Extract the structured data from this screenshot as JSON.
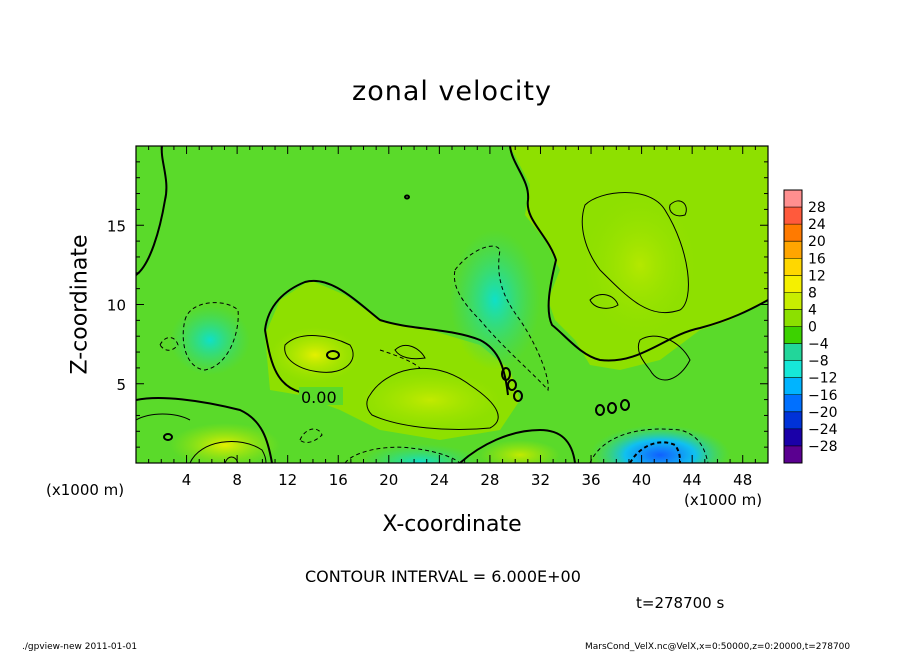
{
  "chart_data": {
    "type": "heatmap",
    "title": "zonal velocity",
    "xlabel": "X-coordinate",
    "ylabel": "Z-coordinate",
    "x_unit_label": "(x1000 m)",
    "xlim": [
      0,
      50
    ],
    "ylim": [
      0,
      20
    ],
    "x_ticks": [
      4,
      8,
      12,
      16,
      20,
      24,
      28,
      32,
      36,
      40,
      44,
      48
    ],
    "y_ticks": [
      5,
      10,
      15
    ],
    "colorbar": {
      "levels": [
        28,
        24,
        20,
        16,
        12,
        8,
        4,
        0,
        -4,
        -8,
        -12,
        -16,
        -20,
        -24,
        -28
      ],
      "colors": [
        "#ff8f8f",
        "#ff5a3c",
        "#ff7a00",
        "#ffa500",
        "#ffd700",
        "#f5f000",
        "#c8ee00",
        "#8ce000",
        "#3cd200",
        "#22d69a",
        "#16e8d8",
        "#00b4ff",
        "#0070ff",
        "#0032d8",
        "#1a00a8",
        "#5a0090"
      ]
    },
    "contour_label": "0.00",
    "contour_interval": "CONTOUR INTERVAL = 6.000E+00",
    "time": "t=278700 s"
  },
  "footer": {
    "left": "./gpview-new   2011-01-01",
    "right": "MarsCond_VelX.nc@VelX,x=0:50000,z=0:20000,t=278700"
  }
}
